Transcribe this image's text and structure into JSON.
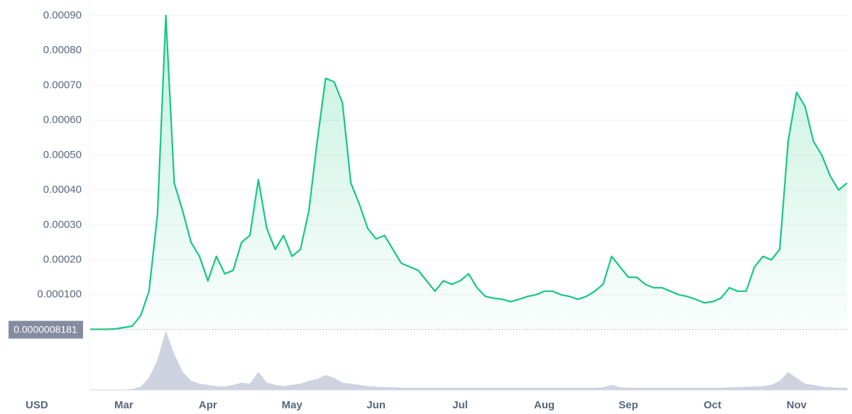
{
  "chart_data": [
    {
      "type": "line",
      "currency_label": "USD",
      "color": "#16c784",
      "categories": [
        null,
        null,
        null,
        null,
        "Mar",
        null,
        null,
        null,
        null,
        null,
        null,
        null,
        null,
        null,
        "Apr",
        null,
        null,
        null,
        null,
        null,
        null,
        null,
        null,
        null,
        "May",
        null,
        null,
        null,
        null,
        null,
        null,
        null,
        null,
        null,
        "Jun",
        null,
        null,
        null,
        null,
        null,
        null,
        null,
        null,
        null,
        "Jul",
        null,
        null,
        null,
        null,
        null,
        null,
        null,
        null,
        null,
        "Aug",
        null,
        null,
        null,
        null,
        null,
        null,
        null,
        null,
        null,
        "Sep",
        null,
        null,
        null,
        null,
        null,
        null,
        null,
        null,
        null,
        "Oct",
        null,
        null,
        null,
        null,
        null,
        null,
        null,
        null,
        null,
        "Nov",
        null,
        null,
        null,
        null,
        null,
        null
      ],
      "values": [
        1e-06,
        1e-06,
        1e-06,
        2e-06,
        6e-06,
        1e-05,
        4e-05,
        0.00011,
        0.00033,
        0.0009,
        0.00042,
        0.00034,
        0.00025,
        0.00021,
        0.00014,
        0.00021,
        0.00016,
        0.00017,
        0.00025,
        0.00027,
        0.00043,
        0.00029,
        0.00023,
        0.00027,
        0.00021,
        0.00023,
        0.00034,
        0.00054,
        0.00072,
        0.00071,
        0.00065,
        0.00042,
        0.00036,
        0.00029,
        0.00026,
        0.00027,
        0.00023,
        0.00019,
        0.00018,
        0.00017,
        0.00014,
        0.00011,
        0.00014,
        0.00013,
        0.00014,
        0.00016,
        0.00012,
        9.5e-05,
        9e-05,
        8.7e-05,
        8e-05,
        8.7e-05,
        9.5e-05,
        0.0001,
        0.00011,
        0.00011,
        0.0001,
        9.5e-05,
        8.7e-05,
        9.5e-05,
        0.00011,
        0.00013,
        0.00021,
        0.00018,
        0.00015,
        0.00015,
        0.00013,
        0.00012,
        0.00012,
        0.00011,
        0.0001,
        9.5e-05,
        8.7e-05,
        7.7e-05,
        8e-05,
        9e-05,
        0.00012,
        0.00011,
        0.00011,
        0.00018,
        0.00021,
        0.0002,
        0.00023,
        0.00054,
        0.00068,
        0.00064,
        0.00054,
        0.0005,
        0.00044,
        0.0004,
        0.00042
      ],
      "ylim": [
        0,
        0.00092
      ],
      "yticks": [
        {
          "value": 0.0001,
          "label": "0.000100"
        },
        {
          "value": 0.0002,
          "label": "0.00020"
        },
        {
          "value": 0.0003,
          "label": "0.00030"
        },
        {
          "value": 0.0004,
          "label": "0.00040"
        },
        {
          "value": 0.0005,
          "label": "0.00050"
        },
        {
          "value": 0.0006,
          "label": "0.00060"
        },
        {
          "value": 0.0007,
          "label": "0.00070"
        },
        {
          "value": 0.0008,
          "label": "0.00080"
        },
        {
          "value": 0.0009,
          "label": "0.00090"
        }
      ],
      "current_price": {
        "value": 8.181e-07,
        "label": "0.0000008181"
      },
      "grid": true
    },
    {
      "type": "area",
      "color": "#cfd3e0",
      "values": [
        0,
        0,
        0,
        0,
        0,
        1,
        5,
        20,
        50,
        100,
        60,
        30,
        15,
        10,
        8,
        6,
        5,
        8,
        12,
        10,
        30,
        12,
        8,
        6,
        8,
        10,
        15,
        18,
        25,
        20,
        12,
        10,
        8,
        6,
        5,
        4,
        4,
        3,
        3,
        3,
        3,
        3,
        3,
        3,
        3,
        3,
        3,
        3,
        3,
        3,
        3,
        3,
        3,
        3,
        3,
        3,
        3,
        3,
        3,
        3,
        3,
        4,
        8,
        4,
        3,
        3,
        3,
        3,
        3,
        3,
        3,
        3,
        3,
        3,
        3,
        3,
        4,
        4,
        5,
        5,
        6,
        8,
        15,
        30,
        20,
        10,
        8,
        5,
        4,
        3,
        3
      ],
      "ylim": [
        0,
        100
      ]
    }
  ]
}
